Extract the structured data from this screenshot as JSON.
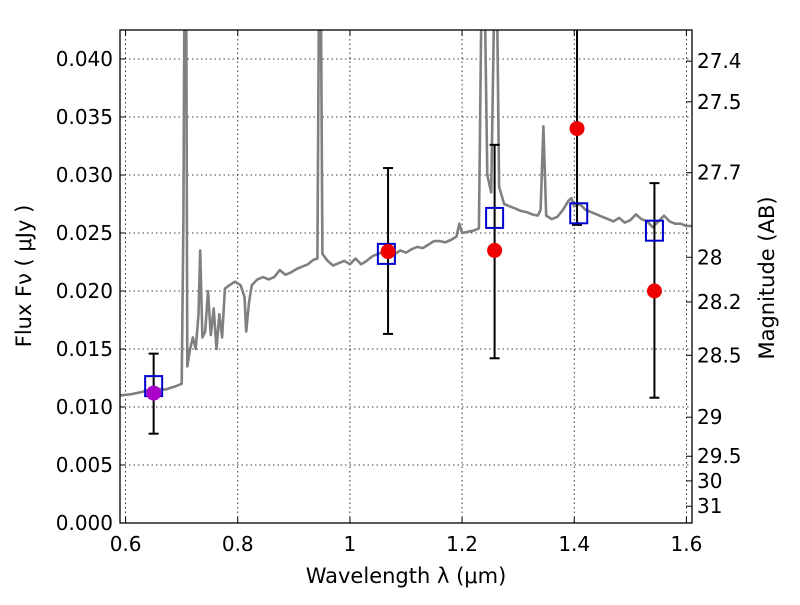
{
  "chart_data": {
    "type": "scatter",
    "title": "",
    "xlabel": "Wavelength  λ (μm)",
    "ylabel": "Flux  Fν  ( μJy )",
    "ylabel_right": "Magnitude (AB)",
    "xlim": [
      0.59,
      1.61
    ],
    "ylim": [
      0.0,
      0.0425
    ],
    "grid": true,
    "legend": "none",
    "x_ticks": [
      {
        "value": 0.6,
        "label": "0.6"
      },
      {
        "value": 0.8,
        "label": "0.8"
      },
      {
        "value": 1.0,
        "label": "1"
      },
      {
        "value": 1.2,
        "label": "1.2"
      },
      {
        "value": 1.4,
        "label": "1.4"
      },
      {
        "value": 1.6,
        "label": "1.6"
      }
    ],
    "y_ticks": [
      {
        "value": 0.0,
        "label": "0.000"
      },
      {
        "value": 0.005,
        "label": "0.005"
      },
      {
        "value": 0.01,
        "label": "0.010"
      },
      {
        "value": 0.015,
        "label": "0.015"
      },
      {
        "value": 0.02,
        "label": "0.020"
      },
      {
        "value": 0.025,
        "label": "0.025"
      },
      {
        "value": 0.03,
        "label": "0.030"
      },
      {
        "value": 0.035,
        "label": "0.035"
      },
      {
        "value": 0.04,
        "label": "0.040"
      }
    ],
    "right_ticks": [
      {
        "mag": 27.4,
        "label": "27.4"
      },
      {
        "mag": 27.5,
        "label": "27.5"
      },
      {
        "mag": 27.7,
        "label": "27.7"
      },
      {
        "mag": 28.0,
        "label": "28"
      },
      {
        "mag": 28.2,
        "label": "28.2"
      },
      {
        "mag": 28.5,
        "label": "28.5"
      },
      {
        "mag": 29.0,
        "label": "29"
      },
      {
        "mag": 29.5,
        "label": "29.5"
      },
      {
        "mag": 30.0,
        "label": "30"
      },
      {
        "mag": 31.0,
        "label": "31"
      }
    ],
    "series": [
      {
        "kind": "line",
        "color": "#808080",
        "points": [
          [
            0.59,
            0.011
          ],
          [
            0.61,
            0.0111
          ],
          [
            0.63,
            0.0113
          ],
          [
            0.65,
            0.0116
          ],
          [
            0.67,
            0.0115
          ],
          [
            0.69,
            0.0118
          ],
          [
            0.7,
            0.012
          ],
          [
            0.703,
            0.026
          ],
          [
            0.705,
            0.047
          ],
          [
            0.708,
            0.047
          ],
          [
            0.71,
            0.0135
          ],
          [
            0.715,
            0.015
          ],
          [
            0.72,
            0.016
          ],
          [
            0.725,
            0.015
          ],
          [
            0.73,
            0.018
          ],
          [
            0.733,
            0.0235
          ],
          [
            0.737,
            0.016
          ],
          [
            0.742,
            0.0165
          ],
          [
            0.747,
            0.02
          ],
          [
            0.752,
            0.0162
          ],
          [
            0.757,
            0.0185
          ],
          [
            0.762,
            0.015
          ],
          [
            0.767,
            0.018
          ],
          [
            0.772,
            0.016
          ],
          [
            0.777,
            0.0202
          ],
          [
            0.785,
            0.0205
          ],
          [
            0.795,
            0.0208
          ],
          [
            0.805,
            0.0205
          ],
          [
            0.812,
            0.0195
          ],
          [
            0.815,
            0.0165
          ],
          [
            0.82,
            0.019
          ],
          [
            0.825,
            0.0205
          ],
          [
            0.835,
            0.021
          ],
          [
            0.845,
            0.0212
          ],
          [
            0.855,
            0.021
          ],
          [
            0.865,
            0.0212
          ],
          [
            0.875,
            0.0218
          ],
          [
            0.885,
            0.0214
          ],
          [
            0.895,
            0.0216
          ],
          [
            0.905,
            0.0219
          ],
          [
            0.915,
            0.0221
          ],
          [
            0.925,
            0.0223
          ],
          [
            0.935,
            0.0227
          ],
          [
            0.942,
            0.0228
          ],
          [
            0.945,
            0.047
          ],
          [
            0.948,
            0.047
          ],
          [
            0.951,
            0.0232
          ],
          [
            0.96,
            0.0226
          ],
          [
            0.97,
            0.0222
          ],
          [
            0.98,
            0.0224
          ],
          [
            0.99,
            0.0226
          ],
          [
            1.0,
            0.0223
          ],
          [
            1.01,
            0.0228
          ],
          [
            1.02,
            0.0223
          ],
          [
            1.03,
            0.0226
          ],
          [
            1.04,
            0.023
          ],
          [
            1.05,
            0.0232
          ],
          [
            1.06,
            0.0234
          ],
          [
            1.07,
            0.0233
          ],
          [
            1.08,
            0.0232
          ],
          [
            1.09,
            0.0235
          ],
          [
            1.1,
            0.0233
          ],
          [
            1.11,
            0.0236
          ],
          [
            1.12,
            0.0238
          ],
          [
            1.13,
            0.0237
          ],
          [
            1.14,
            0.024
          ],
          [
            1.15,
            0.0243
          ],
          [
            1.16,
            0.0243
          ],
          [
            1.17,
            0.0242
          ],
          [
            1.18,
            0.0244
          ],
          [
            1.19,
            0.0247
          ],
          [
            1.195,
            0.0258
          ],
          [
            1.2,
            0.025
          ],
          [
            1.21,
            0.0251
          ],
          [
            1.22,
            0.0252
          ],
          [
            1.23,
            0.0254
          ],
          [
            1.235,
            0.047
          ],
          [
            1.24,
            0.047
          ],
          [
            1.245,
            0.03
          ],
          [
            1.252,
            0.0285
          ],
          [
            1.258,
            0.047
          ],
          [
            1.262,
            0.047
          ],
          [
            1.266,
            0.029
          ],
          [
            1.275,
            0.0275
          ],
          [
            1.285,
            0.0273
          ],
          [
            1.295,
            0.0271
          ],
          [
            1.305,
            0.0269
          ],
          [
            1.315,
            0.0268
          ],
          [
            1.325,
            0.0266
          ],
          [
            1.335,
            0.0265
          ],
          [
            1.34,
            0.027
          ],
          [
            1.345,
            0.0342
          ],
          [
            1.35,
            0.0265
          ],
          [
            1.36,
            0.0262
          ],
          [
            1.37,
            0.0264
          ],
          [
            1.38,
            0.027
          ],
          [
            1.39,
            0.0278
          ],
          [
            1.395,
            0.028
          ],
          [
            1.4,
            0.0273
          ],
          [
            1.41,
            0.0275
          ],
          [
            1.42,
            0.027
          ],
          [
            1.43,
            0.0268
          ],
          [
            1.44,
            0.0266
          ],
          [
            1.45,
            0.0264
          ],
          [
            1.46,
            0.0262
          ],
          [
            1.47,
            0.026
          ],
          [
            1.48,
            0.0263
          ],
          [
            1.49,
            0.0259
          ],
          [
            1.5,
            0.0261
          ],
          [
            1.51,
            0.0266
          ],
          [
            1.52,
            0.0262
          ],
          [
            1.53,
            0.026
          ],
          [
            1.54,
            0.0255
          ],
          [
            1.55,
            0.026
          ],
          [
            1.56,
            0.0265
          ],
          [
            1.57,
            0.026
          ],
          [
            1.58,
            0.0258
          ],
          [
            1.59,
            0.0258
          ],
          [
            1.6,
            0.0256
          ],
          [
            1.61,
            0.0256
          ]
        ]
      },
      {
        "kind": "squares",
        "color": "#0000cc",
        "points": [
          [
            0.65,
            0.0118
          ],
          [
            1.065,
            0.0232
          ],
          [
            1.258,
            0.0263
          ],
          [
            1.408,
            0.0267
          ],
          [
            1.543,
            0.0252
          ]
        ]
      },
      {
        "kind": "points",
        "points": [
          {
            "x": 0.65,
            "y": 0.0112,
            "yerr_low": 0.0077,
            "yerr_high": 0.0146,
            "color": "#aa00cc"
          },
          {
            "x": 1.068,
            "y": 0.0234,
            "yerr_low": 0.0163,
            "yerr_high": 0.0306,
            "color": "#ee0000"
          },
          {
            "x": 1.258,
            "y": 0.0235,
            "yerr_low": 0.0142,
            "yerr_high": 0.0326,
            "color": "#ee0000"
          },
          {
            "x": 1.405,
            "y": 0.034,
            "yerr_low": 0.0257,
            "yerr_high": 0.043,
            "color": "#ee0000"
          },
          {
            "x": 1.543,
            "y": 0.02,
            "yerr_low": 0.0108,
            "yerr_high": 0.0293,
            "color": "#ee0000"
          }
        ]
      }
    ]
  }
}
